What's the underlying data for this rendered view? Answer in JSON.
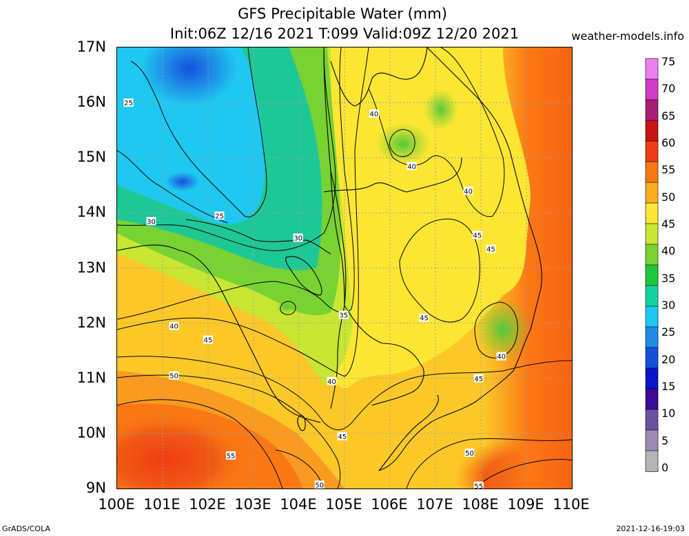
{
  "title_line1": "GFS Precipitable Water (mm)",
  "title_line2": "Init:06Z 12/16 2021 T:099 Valid:09Z 12/20 2021",
  "site": "weather-models.info",
  "footer_left": "GrADS/COLA",
  "footer_right": "2021-12-16-19:03",
  "lat_labels": [
    "17N",
    "16N",
    "15N",
    "14N",
    "13N",
    "12N",
    "11N",
    "10N",
    "9N"
  ],
  "lon_labels": [
    "100E",
    "101E",
    "102E",
    "103E",
    "104E",
    "105E",
    "106E",
    "107E",
    "108E",
    "109E",
    "110E"
  ],
  "colorbar_labels": [
    "75",
    "70",
    "65",
    "60",
    "55",
    "50",
    "45",
    "40",
    "35",
    "30",
    "25",
    "20",
    "15",
    "10",
    "5",
    "0"
  ],
  "colorbar_colors": [
    "#ee7fee",
    "#d23cc8",
    "#a81e78",
    "#c81414",
    "#f03c14",
    "#fa7814",
    "#fcae1e",
    "#fce632",
    "#c8e632",
    "#78d232",
    "#1ec83c",
    "#14d2a0",
    "#1ec8f0",
    "#1e8ce6",
    "#1450dc",
    "#0a14c8",
    "#3c0a96",
    "#6e50a0",
    "#9b8cb4",
    "#b4b4b4"
  ],
  "contour_labels": [
    {
      "text": "25",
      "lon": 100.25,
      "lat": 16.0
    },
    {
      "text": "25",
      "lon": 102.25,
      "lat": 13.95
    },
    {
      "text": "30",
      "lon": 100.75,
      "lat": 13.85
    },
    {
      "text": "30",
      "lon": 103.98,
      "lat": 13.55
    },
    {
      "text": "35",
      "lon": 104.98,
      "lat": 12.15
    },
    {
      "text": "40",
      "lon": 101.25,
      "lat": 11.95
    },
    {
      "text": "40",
      "lon": 105.65,
      "lat": 15.8
    },
    {
      "text": "40",
      "lon": 106.48,
      "lat": 14.85
    },
    {
      "text": "40",
      "lon": 107.72,
      "lat": 14.4
    },
    {
      "text": "40",
      "lon": 104.72,
      "lat": 10.95
    },
    {
      "text": "40",
      "lon": 108.45,
      "lat": 11.4
    },
    {
      "text": "45",
      "lon": 102.0,
      "lat": 11.7
    },
    {
      "text": "45",
      "lon": 107.92,
      "lat": 13.6
    },
    {
      "text": "45",
      "lon": 108.22,
      "lat": 13.35
    },
    {
      "text": "45",
      "lon": 106.75,
      "lat": 12.1
    },
    {
      "text": "45",
      "lon": 107.95,
      "lat": 11.0
    },
    {
      "text": "45",
      "lon": 104.95,
      "lat": 9.95
    },
    {
      "text": "50",
      "lon": 101.25,
      "lat": 11.05
    },
    {
      "text": "50",
      "lon": 107.75,
      "lat": 9.65
    },
    {
      "text": "50",
      "lon": 104.45,
      "lat": 9.07
    },
    {
      "text": "55",
      "lon": 102.5,
      "lat": 9.6
    },
    {
      "text": "55",
      "lon": 107.95,
      "lat": 9.05
    }
  ]
}
